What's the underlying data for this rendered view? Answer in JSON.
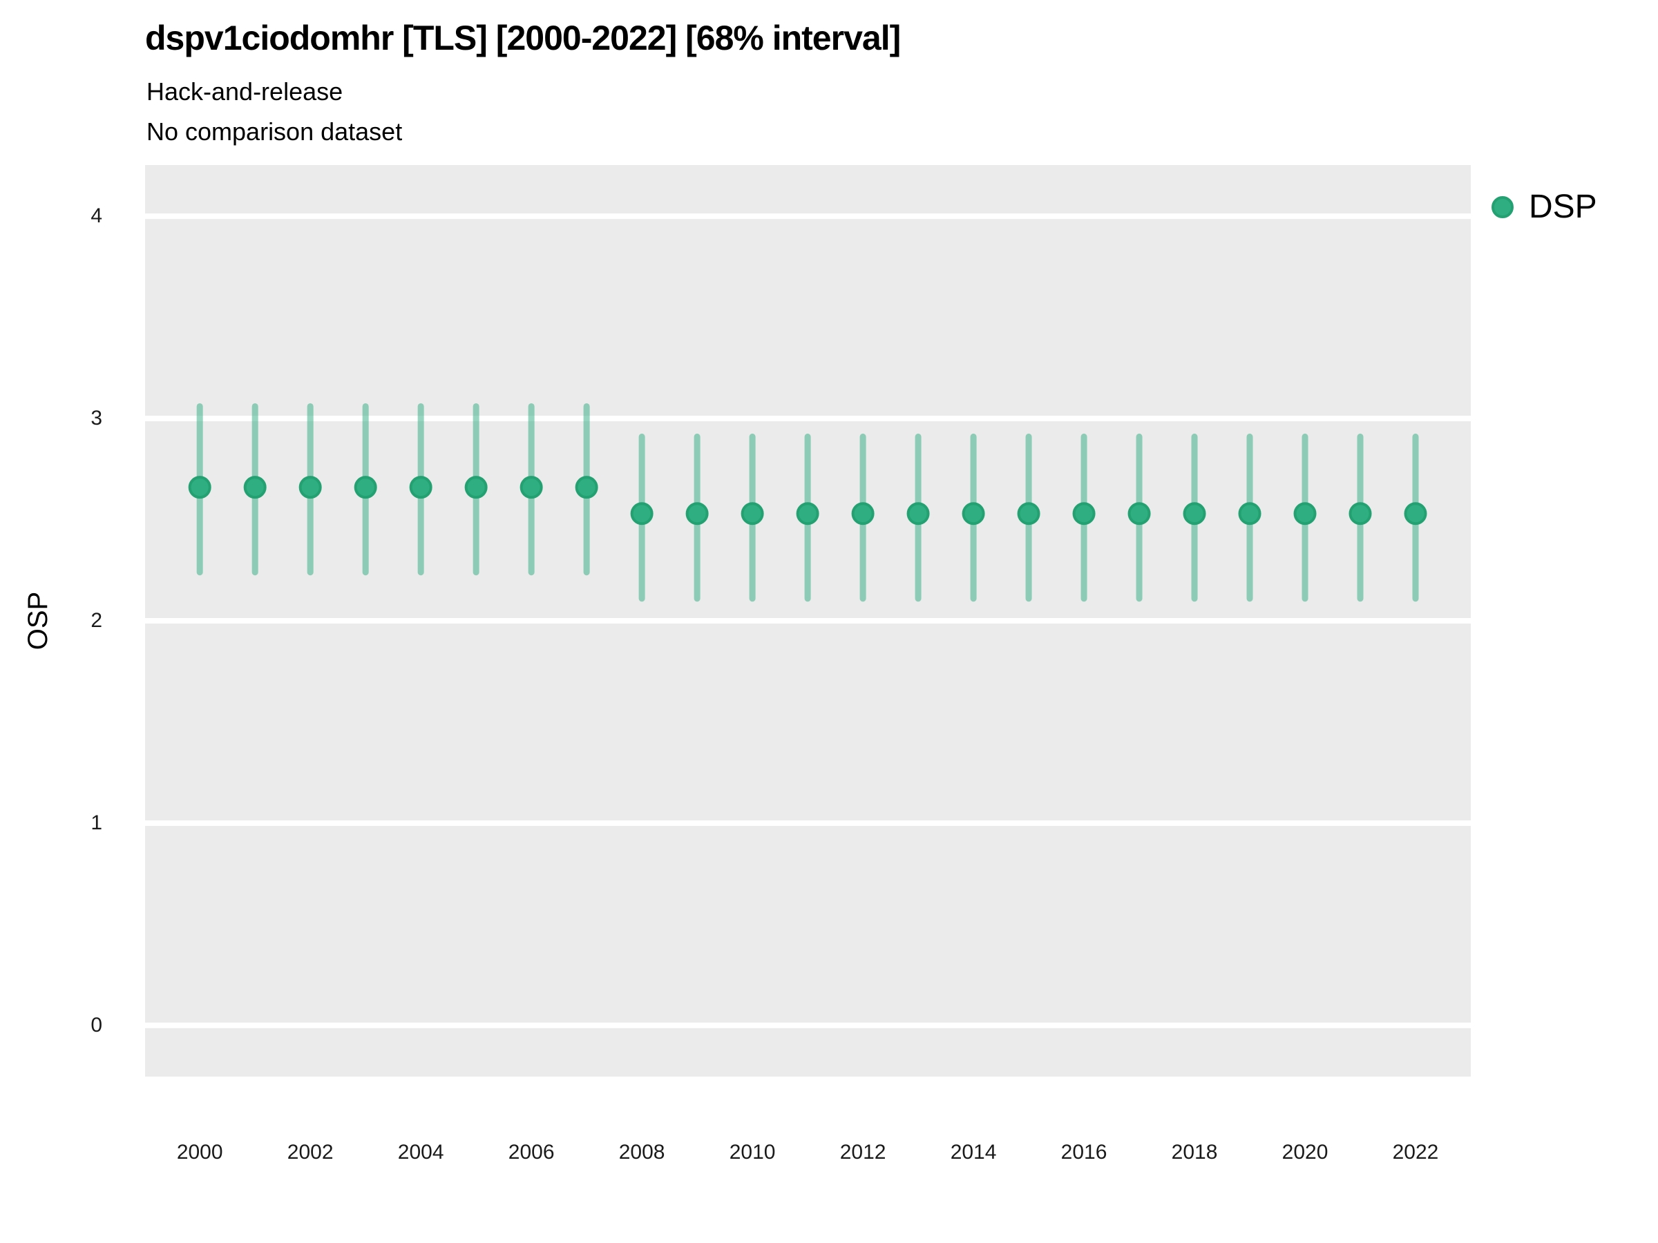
{
  "header": {
    "title": "dspv1ciodomhr [TLS] [2000-2022] [68% interval]",
    "subtitle_line1": "Hack-and-release",
    "subtitle_line2": "No comparison dataset"
  },
  "y_axis": {
    "label": "OSP"
  },
  "legend": {
    "items": [
      {
        "label": "DSP",
        "marker": "circle-icon",
        "color": "#2eae81"
      }
    ]
  },
  "colors": {
    "panel_background": "#ebebeb",
    "gridline": "#ffffff",
    "point_fill": "#2eae81",
    "point_stroke": "#24a173",
    "interval_bar": "rgba(46,174,129,0.5)",
    "text": "#000000",
    "tick_text": "#1a1a1a"
  },
  "chart_data": {
    "type": "scatter",
    "subtype": "point-interval",
    "title": "dspv1ciodomhr [TLS] [2000-2022] [68% interval]",
    "subtitle": "Hack-and-release / No comparison dataset",
    "xlabel": "",
    "ylabel": "OSP",
    "interval_level": "68%",
    "grid": "horizontal-major-only",
    "legend_position": "right",
    "xlim": [
      1999.01,
      2023.0
    ],
    "ylim": [
      -0.253,
      4.253
    ],
    "x_ticks": [
      2000,
      2002,
      2004,
      2006,
      2008,
      2010,
      2012,
      2014,
      2016,
      2018,
      2020,
      2022
    ],
    "y_ticks": [
      0,
      1,
      2,
      3,
      4
    ],
    "x": [
      2000,
      2001,
      2002,
      2003,
      2004,
      2005,
      2006,
      2007,
      2008,
      2009,
      2010,
      2011,
      2012,
      2013,
      2014,
      2015,
      2016,
      2017,
      2018,
      2019,
      2020,
      2021,
      2022
    ],
    "series": [
      {
        "name": "DSP",
        "means": [
          2.66,
          2.66,
          2.66,
          2.66,
          2.66,
          2.66,
          2.66,
          2.66,
          2.53,
          2.53,
          2.53,
          2.53,
          2.53,
          2.53,
          2.53,
          2.53,
          2.53,
          2.53,
          2.53,
          2.53,
          2.53,
          2.53,
          2.53
        ],
        "interval_low": [
          2.24,
          2.24,
          2.24,
          2.24,
          2.24,
          2.24,
          2.24,
          2.24,
          2.11,
          2.11,
          2.11,
          2.11,
          2.11,
          2.11,
          2.11,
          2.11,
          2.11,
          2.11,
          2.11,
          2.11,
          2.11,
          2.11,
          2.11
        ],
        "interval_high": [
          3.06,
          3.06,
          3.06,
          3.06,
          3.06,
          3.06,
          3.06,
          3.06,
          2.91,
          2.91,
          2.91,
          2.91,
          2.91,
          2.91,
          2.91,
          2.91,
          2.91,
          2.91,
          2.91,
          2.91,
          2.91,
          2.91,
          2.91
        ]
      }
    ]
  }
}
